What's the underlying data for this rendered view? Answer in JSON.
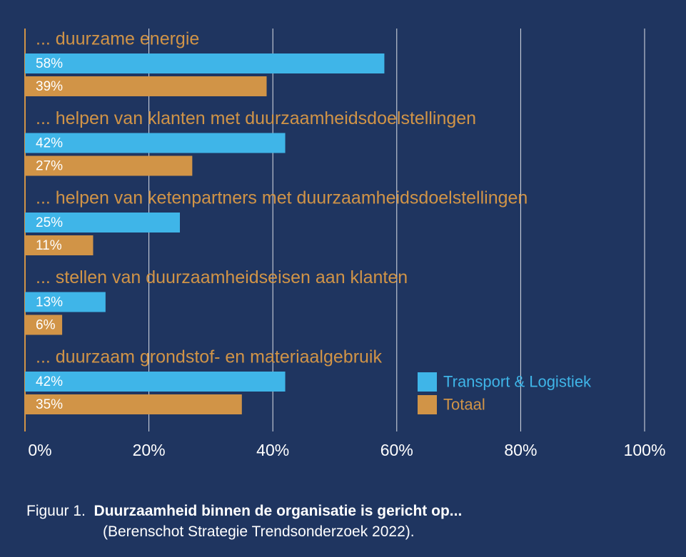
{
  "colors": {
    "background": "#1f3560",
    "series_transport": "#3fb5e8",
    "series_totaal": "#d19447",
    "gridline": "#ffffff",
    "text_light": "#ffffff"
  },
  "chart_data": {
    "type": "bar",
    "orientation": "horizontal",
    "categories": [
      "... duurzame energie",
      "... helpen van klanten met duurzaamheidsdoelstellingen",
      "... helpen van ketenpartners met duurzaamheidsdoelstellingen",
      "... stellen van duurzaamheidseisen aan klanten",
      "... duurzaam grondstof- en materiaalgebruik"
    ],
    "series": [
      {
        "name": "Transport & Logistiek",
        "values": [
          58,
          42,
          25,
          13,
          42
        ],
        "labels": [
          "58%",
          "42%",
          "25%",
          "13%",
          "42%"
        ]
      },
      {
        "name": "Totaal",
        "values": [
          39,
          27,
          11,
          6,
          35
        ],
        "labels": [
          "39%",
          "27%",
          "11%",
          "6%",
          "35%"
        ]
      }
    ],
    "xlim": [
      0,
      100
    ],
    "xticks": [
      0,
      20,
      40,
      60,
      80,
      100
    ],
    "xtick_labels": [
      "0%",
      "20%",
      "40%",
      "60%",
      "80%",
      "100%"
    ],
    "grid": true,
    "legend_position": "bottom-right"
  },
  "caption": {
    "prefix": "Figuur 1.",
    "title": "Duurzaamheid binnen de organisatie is gericht op...",
    "source": "(Berenschot Strategie Trendsonderzoek 2022)."
  }
}
